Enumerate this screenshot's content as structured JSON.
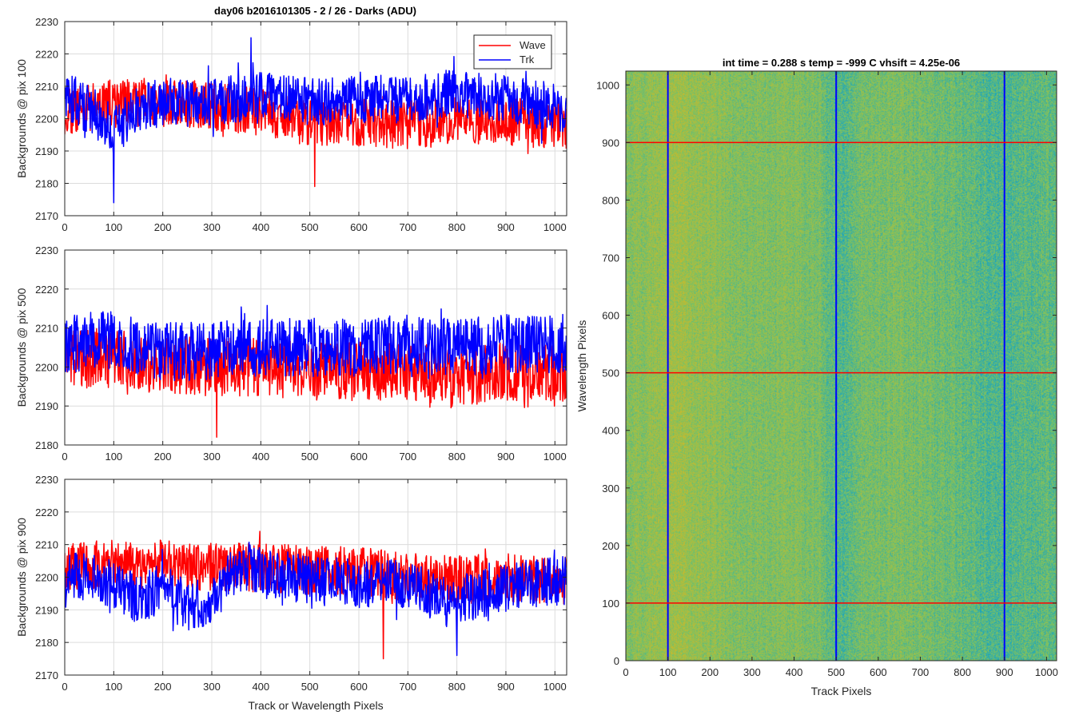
{
  "figure": {
    "left_title": "day06 b2016101305 - 2 / 26 - Darks (ADU)",
    "right_title": "int time = 0.288 s   temp = -999 C   vhsift = 4.25e-06"
  },
  "chart_data": [
    {
      "type": "line",
      "id": "pix100",
      "title": "day06 b2016101305 - 2 / 26 - Darks (ADU)",
      "xlabel": "",
      "ylabel": "Backgrounds @ pix 100",
      "xlim": [
        0,
        1024
      ],
      "ylim": [
        2170,
        2230
      ],
      "xticks": [
        0,
        100,
        200,
        300,
        400,
        500,
        600,
        700,
        800,
        900,
        1000
      ],
      "yticks": [
        2170,
        2180,
        2190,
        2200,
        2210,
        2220,
        2230
      ],
      "grid": true,
      "legend": {
        "position": "top-right",
        "entries": [
          "Wave",
          "Trk"
        ]
      },
      "series": [
        {
          "name": "Wave",
          "color": "#ff0000",
          "mean_profile": [
            [
              0,
              2202
            ],
            [
              100,
              2205
            ],
            [
              200,
              2205
            ],
            [
              300,
              2204
            ],
            [
              400,
              2202
            ],
            [
              500,
              2199
            ],
            [
              600,
              2199
            ],
            [
              700,
              2198
            ],
            [
              800,
              2199
            ],
            [
              900,
              2199
            ],
            [
              1024,
              2198
            ]
          ],
          "noise_amplitude": 6,
          "n_points": 1024
        },
        {
          "name": "Trk",
          "color": "#0000ff",
          "mean_profile": [
            [
              0,
              2207
            ],
            [
              60,
              2202
            ],
            [
              100,
              2196
            ],
            [
              150,
              2203
            ],
            [
              200,
              2205
            ],
            [
              300,
              2205
            ],
            [
              400,
              2207
            ],
            [
              500,
              2205
            ],
            [
              600,
              2206
            ],
            [
              700,
              2206
            ],
            [
              800,
              2208
            ],
            [
              900,
              2206
            ],
            [
              1024,
              2203
            ]
          ],
          "noise_amplitude": 6,
          "n_points": 1024
        }
      ],
      "annotations": {
        "wave_min": [
          510,
          2179
        ],
        "trk_min": [
          100,
          2174
        ],
        "trk_max": [
          380,
          2225
        ]
      }
    },
    {
      "type": "line",
      "id": "pix500",
      "title": "",
      "xlabel": "",
      "ylabel": "Backgrounds @ pix 500",
      "xlim": [
        0,
        1024
      ],
      "ylim": [
        2180,
        2230
      ],
      "xticks": [
        0,
        100,
        200,
        300,
        400,
        500,
        600,
        700,
        800,
        900,
        1000
      ],
      "yticks": [
        2180,
        2190,
        2200,
        2210,
        2220,
        2230
      ],
      "grid": true,
      "series": [
        {
          "name": "Wave",
          "color": "#ff0000",
          "mean_profile": [
            [
              0,
              2203
            ],
            [
              100,
              2202
            ],
            [
              200,
              2201
            ],
            [
              300,
              2200
            ],
            [
              400,
              2200
            ],
            [
              500,
              2199
            ],
            [
              600,
              2199
            ],
            [
              700,
              2199
            ],
            [
              800,
              2197
            ],
            [
              900,
              2199
            ],
            [
              1024,
              2198
            ]
          ],
          "noise_amplitude": 6,
          "n_points": 1024
        },
        {
          "name": "Trk",
          "color": "#0000ff",
          "mean_profile": [
            [
              0,
              2206
            ],
            [
              100,
              2207
            ],
            [
              200,
              2204
            ],
            [
              300,
              2204
            ],
            [
              400,
              2205
            ],
            [
              500,
              2205
            ],
            [
              600,
              2205
            ],
            [
              700,
              2206
            ],
            [
              800,
              2205
            ],
            [
              900,
              2206
            ],
            [
              1024,
              2206
            ]
          ],
          "noise_amplitude": 6,
          "n_points": 1024
        }
      ],
      "annotations": {
        "wave_min": [
          310,
          2182
        ]
      }
    },
    {
      "type": "line",
      "id": "pix900",
      "title": "",
      "xlabel": "Track or Wavelength Pixels",
      "ylabel": "Backgrounds @ pix 900",
      "xlim": [
        0,
        1024
      ],
      "ylim": [
        2170,
        2230
      ],
      "xticks": [
        0,
        100,
        200,
        300,
        400,
        500,
        600,
        700,
        800,
        900,
        1000
      ],
      "yticks": [
        2170,
        2180,
        2190,
        2200,
        2210,
        2220,
        2230
      ],
      "grid": true,
      "series": [
        {
          "name": "Wave",
          "color": "#ff0000",
          "mean_profile": [
            [
              0,
              2203
            ],
            [
              100,
              2204
            ],
            [
              200,
              2204
            ],
            [
              300,
              2203
            ],
            [
              400,
              2203
            ],
            [
              500,
              2202
            ],
            [
              600,
              2202
            ],
            [
              700,
              2200
            ],
            [
              800,
              2199
            ],
            [
              900,
              2200
            ],
            [
              1024,
              2199
            ]
          ],
          "noise_amplitude": 6,
          "n_points": 1024
        },
        {
          "name": "Trk",
          "color": "#0000ff",
          "mean_profile": [
            [
              0,
              2201
            ],
            [
              100,
              2198
            ],
            [
              150,
              2193
            ],
            [
              200,
              2197
            ],
            [
              250,
              2191
            ],
            [
              300,
              2192
            ],
            [
              350,
              2203
            ],
            [
              400,
              2202
            ],
            [
              500,
              2199
            ],
            [
              600,
              2198
            ],
            [
              700,
              2198
            ],
            [
              780,
              2192
            ],
            [
              800,
              2193
            ],
            [
              900,
              2197
            ],
            [
              1024,
              2199
            ]
          ],
          "noise_amplitude": 6,
          "n_points": 1024
        }
      ],
      "annotations": {
        "wave_min": [
          650,
          2175
        ],
        "trk_min": [
          800,
          2176
        ]
      }
    },
    {
      "type": "heatmap",
      "id": "frame",
      "title": "int time = 0.288 s   temp = -999 C   vhsift = 4.25e-06",
      "xlabel": "Track Pixels",
      "ylabel": "Wavelength Pixels",
      "xlim": [
        0,
        1024
      ],
      "ylim": [
        0,
        1024
      ],
      "xticks": [
        0,
        100,
        200,
        300,
        400,
        500,
        600,
        700,
        800,
        900,
        1000
      ],
      "yticks": [
        0,
        100,
        200,
        300,
        400,
        500,
        600,
        700,
        800,
        900,
        1000
      ],
      "colormap": "parula",
      "colormap_stops": [
        "#7cc262",
        "#cab92b",
        "#14a3c5"
      ],
      "column_intensity_profile": [
        [
          0,
          0.55
        ],
        [
          60,
          0.65
        ],
        [
          120,
          0.7
        ],
        [
          200,
          0.62
        ],
        [
          300,
          0.55
        ],
        [
          400,
          0.55
        ],
        [
          460,
          0.5
        ],
        [
          480,
          0.35
        ],
        [
          520,
          0.3
        ],
        [
          560,
          0.5
        ],
        [
          650,
          0.52
        ],
        [
          780,
          0.42
        ],
        [
          860,
          0.3
        ],
        [
          900,
          0.28
        ],
        [
          960,
          0.35
        ],
        [
          1024,
          0.4
        ]
      ],
      "vertical_lines": {
        "color": "#0000ff",
        "x": [
          100,
          500,
          900
        ]
      },
      "horizontal_lines": {
        "color": "#ff0000",
        "y": [
          100,
          500,
          900
        ]
      }
    }
  ]
}
